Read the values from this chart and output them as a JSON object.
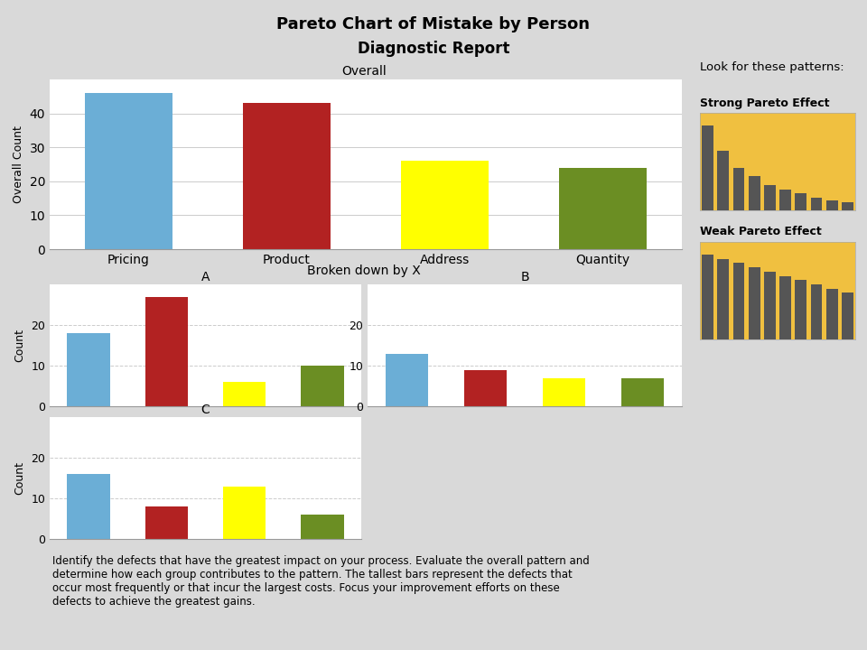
{
  "title": "Pareto Chart of Mistake by Person",
  "subtitle": "Diagnostic Report",
  "bg_color": "#d9d9d9",
  "chart_bg": "#ffffff",
  "overall_label": "Overall",
  "broken_label": "Broken down by X",
  "overall_categories": [
    "Pricing",
    "Product",
    "Address",
    "Quantity"
  ],
  "overall_values": [
    46,
    43,
    26,
    24
  ],
  "overall_colors": [
    "#6baed6",
    "#b22222",
    "#ffff00",
    "#6b8e23"
  ],
  "overall_ylabel": "Overall Count",
  "overall_ylim": [
    0,
    50
  ],
  "overall_yticks": [
    0,
    10,
    20,
    30,
    40
  ],
  "subgroup_colors": [
    "#6baed6",
    "#b22222",
    "#ffff00",
    "#6b8e23"
  ],
  "subgroup_A_values": [
    18,
    27,
    6,
    10
  ],
  "subgroup_B_values": [
    13,
    9,
    7,
    7
  ],
  "subgroup_C_values": [
    16,
    8,
    13,
    6
  ],
  "subgroup_ylabel": "Count",
  "subgroup_ylim": [
    0,
    30
  ],
  "subgroup_yticks": [
    0,
    10,
    20
  ],
  "look_for_label": "Look for these patterns:",
  "strong_label": "Strong Pareto Effect",
  "weak_label": "Weak Pareto Effect",
  "pattern_bg": "#f0c040",
  "pattern_bar_color": "#555555",
  "strong_values": [
    10,
    7,
    5,
    4,
    3,
    2.5,
    2,
    1.5,
    1.2,
    1
  ],
  "weak_values": [
    10,
    9.5,
    9,
    8.5,
    8,
    7.5,
    7,
    6.5,
    6,
    5.5
  ],
  "footer_text": "Identify the defects that have the greatest impact on your process. Evaluate the overall pattern and\ndetermine how each group contributes to the pattern. The tallest bars represent the defects that\noccur most frequently or that incur the largest costs. Focus your improvement efforts on these\ndefects to achieve the greatest gains."
}
